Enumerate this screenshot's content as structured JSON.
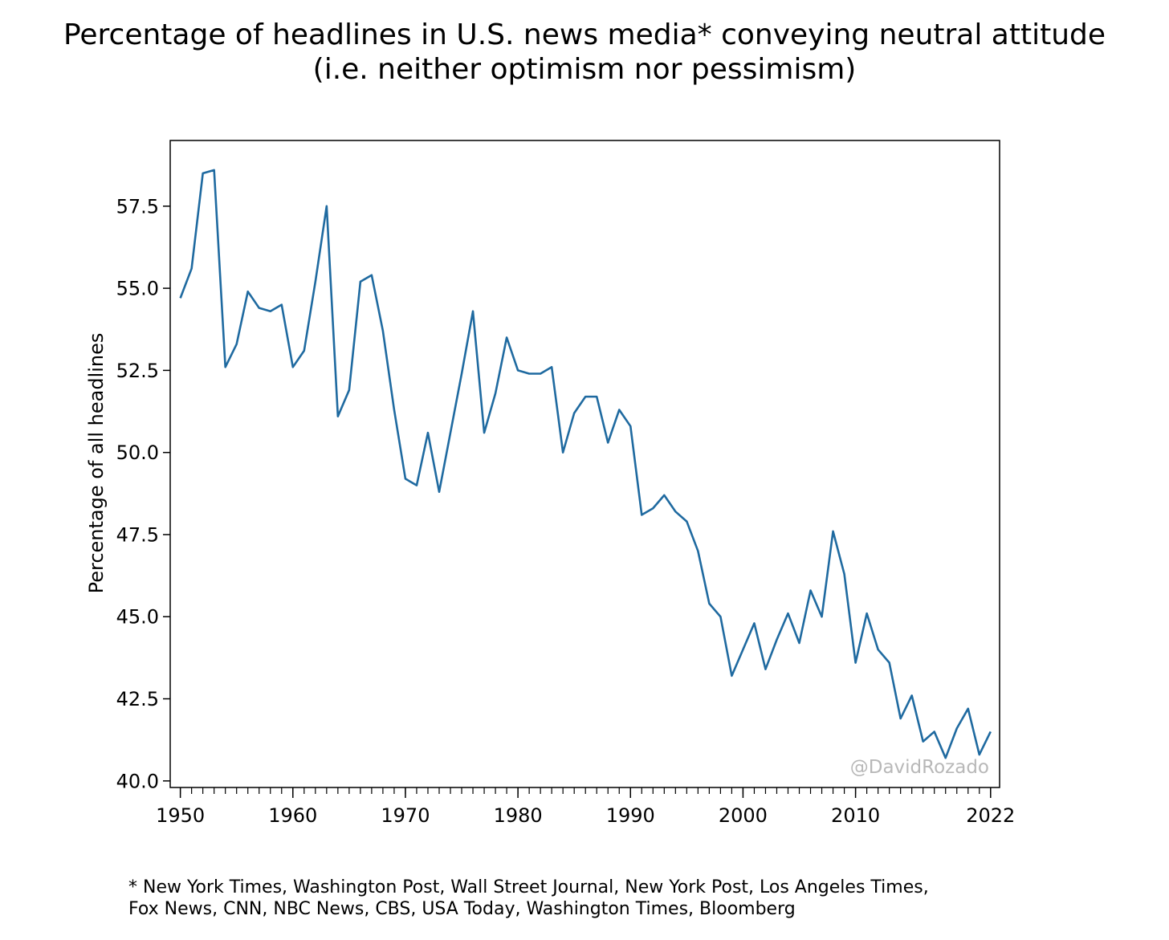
{
  "chart_data": {
    "type": "line",
    "title_lines": [
      "Percentage of headlines in U.S. news media* conveying neutral attitude",
      "(i.e. neither optimism nor pessimism)"
    ],
    "xlabel": "",
    "ylabel": "Percentage of all headlines",
    "xlim": [
      1949.1,
      2022.8
    ],
    "ylim": [
      39.8,
      59.5
    ],
    "x_ticks": [
      1950,
      1960,
      1970,
      1980,
      1990,
      2000,
      2010,
      2022
    ],
    "y_ticks": [
      40.0,
      42.5,
      45.0,
      47.5,
      50.0,
      52.5,
      55.0,
      57.5
    ],
    "y_tick_labels": [
      "40.0",
      "42.5",
      "45.0",
      "47.5",
      "50.0",
      "52.5",
      "55.0",
      "57.5"
    ],
    "grid": false,
    "line_color": "#1f6aa0",
    "watermark": "@DavidRozado",
    "x": [
      1950,
      1951,
      1952,
      1953,
      1954,
      1955,
      1956,
      1957,
      1958,
      1959,
      1960,
      1961,
      1962,
      1963,
      1964,
      1965,
      1966,
      1967,
      1968,
      1969,
      1970,
      1971,
      1972,
      1973,
      1974,
      1975,
      1976,
      1977,
      1978,
      1979,
      1980,
      1981,
      1982,
      1983,
      1984,
      1985,
      1986,
      1987,
      1988,
      1989,
      1990,
      1991,
      1992,
      1993,
      1994,
      1995,
      1996,
      1997,
      1998,
      1999,
      2000,
      2001,
      2002,
      2003,
      2004,
      2005,
      2006,
      2007,
      2008,
      2009,
      2010,
      2011,
      2012,
      2013,
      2014,
      2015,
      2016,
      2017,
      2018,
      2019,
      2020,
      2021,
      2022
    ],
    "series": [
      {
        "values": [
          54.7,
          55.6,
          58.5,
          58.6,
          52.6,
          53.3,
          54.9,
          54.4,
          54.3,
          54.5,
          52.6,
          53.1,
          55.2,
          57.5,
          51.1,
          51.9,
          55.2,
          55.4,
          53.7,
          51.3,
          49.2,
          49.0,
          50.6,
          48.8,
          50.6,
          52.4,
          54.3,
          50.6,
          51.8,
          53.5,
          52.5,
          52.4,
          52.4,
          52.6,
          50.0,
          51.2,
          51.7,
          51.7,
          50.3,
          51.3,
          50.8,
          48.1,
          48.3,
          48.7,
          48.2,
          47.9,
          47.0,
          45.4,
          45.0,
          43.2,
          44.0,
          44.8,
          43.4,
          44.3,
          45.1,
          44.2,
          45.8,
          45.0,
          47.6,
          46.3,
          43.6,
          45.1,
          44.0,
          43.6,
          41.9,
          42.6,
          41.2,
          41.5,
          40.7,
          41.6,
          42.2,
          40.8,
          41.5
        ]
      }
    ],
    "footnote_lines": [
      "* New York Times, Washington Post, Wall Street Journal, New York Post, Los Angeles Times,",
      "Fox News, CNN, NBC News, CBS, USA Today, Washington Times, Bloomberg"
    ]
  }
}
